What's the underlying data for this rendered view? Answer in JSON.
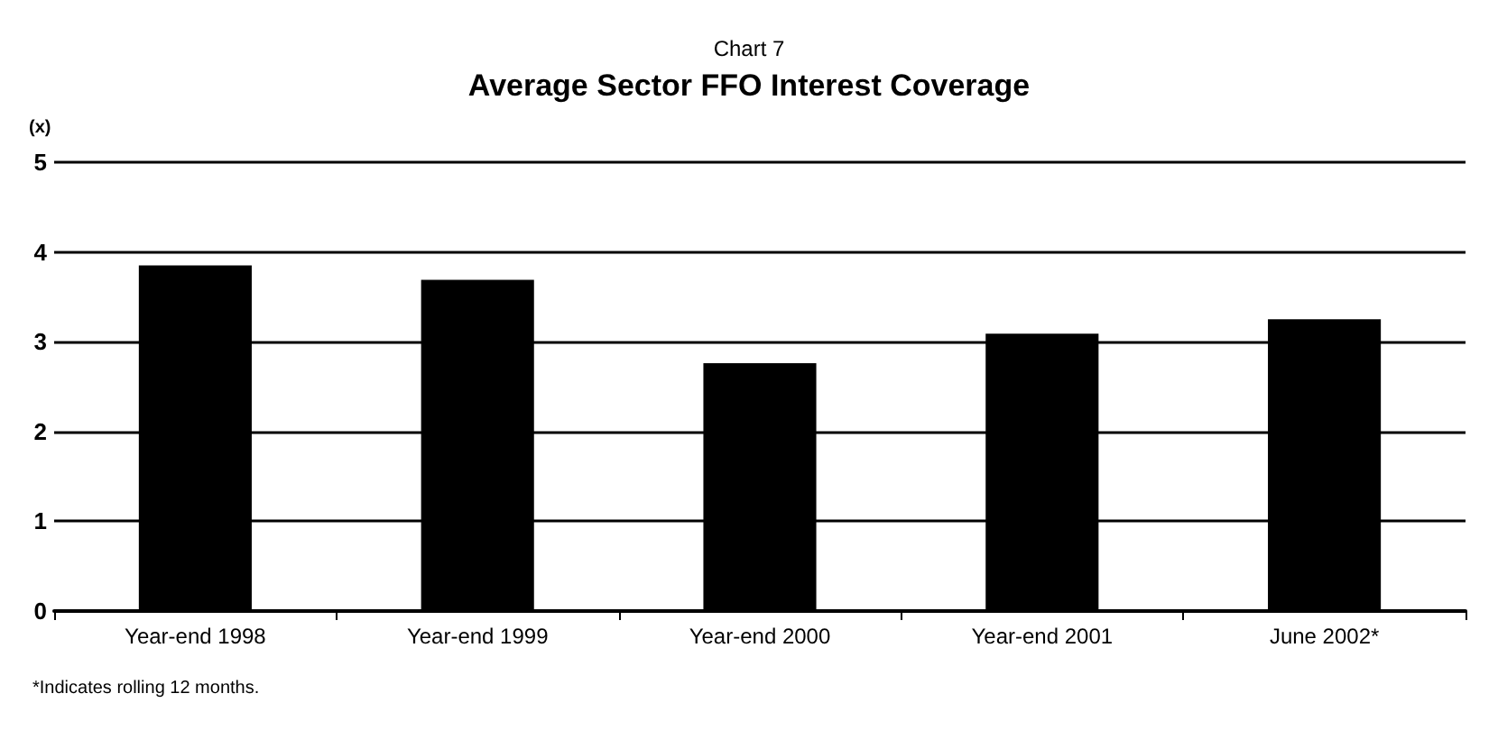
{
  "chart_data": {
    "type": "bar",
    "subtitle": "Chart 7",
    "title": "Average Sector FFO Interest Coverage",
    "ylabel": "(x)",
    "categories": [
      "Year-end 1998",
      "Year-end 1999",
      "Year-end 2000",
      "Year-end 2001",
      "June 2002*"
    ],
    "values": [
      3.85,
      3.69,
      2.76,
      3.09,
      3.25
    ],
    "color": "#000000",
    "ylim": [
      0,
      5
    ],
    "yticks": [
      0,
      1,
      2,
      3,
      4,
      5
    ],
    "grid": "y",
    "annotations": [
      "*Indicates rolling 12 months."
    ]
  }
}
